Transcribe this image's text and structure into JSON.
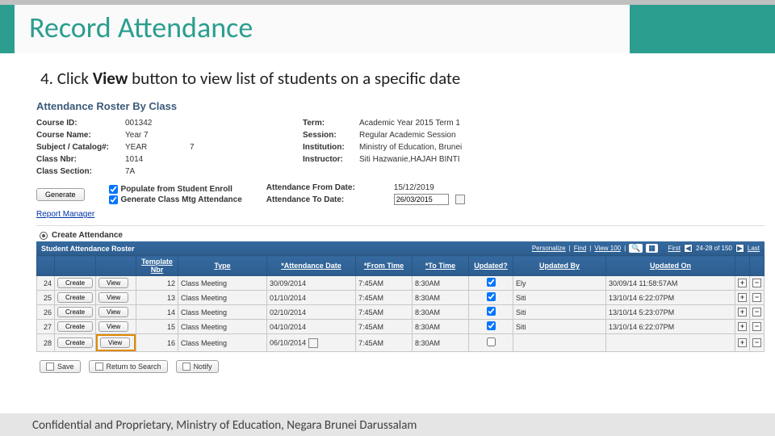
{
  "header": {
    "title": "Record Attendance"
  },
  "instruction": {
    "prefix": "4.  Click ",
    "bold": "View",
    "suffix": " button to view list of students on a specific date"
  },
  "panel": {
    "title": "Attendance Roster By Class",
    "left_fields": [
      {
        "label": "Course ID:",
        "value": "001342"
      },
      {
        "label": "Course Name:",
        "value": "Year 7"
      },
      {
        "label": "Subject / Catalog#:",
        "value": "YEAR",
        "value2": "7"
      },
      {
        "label": "Class Nbr:",
        "value": "1014"
      },
      {
        "label": "Class Section:",
        "value": "7A"
      }
    ],
    "right_fields": [
      {
        "label": "Term:",
        "value": "Academic Year 2015 Term 1"
      },
      {
        "label": "Session:",
        "value": "Regular Academic Session"
      },
      {
        "label": "Institution:",
        "value": "Ministry of Education, Brunei"
      },
      {
        "label": "Instructor:",
        "value": "Siti Hazwanie,HAJAH BINTI"
      }
    ],
    "generate_btn": "Generate",
    "cbx1": "Populate from Student Enroll",
    "cbx2": "Generate Class Mtg Attendance",
    "date_from_label": "Attendance From Date:",
    "date_from_value": "15/12/2019",
    "date_to_label": "Attendance To Date:",
    "date_to_value": "26/03/2015",
    "report_link": "Report Manager",
    "tab_label": "Create Attendance"
  },
  "roster": {
    "bar_title": "Student Attendance Roster",
    "personalize": "Personalize",
    "find": "Find",
    "view100": "View 100",
    "first": "First",
    "range": "24-28 of 150",
    "last": "Last",
    "headers": {
      "template": "Template\nNbr",
      "type": "Type",
      "date": "*Attendance Date",
      "from": "*From Time",
      "to": "*To Time",
      "updated": "Updated?",
      "updated_by": "Updated By",
      "updated_on": "Updated On"
    },
    "rows": [
      {
        "n": "24",
        "tmpl": "12",
        "type": "Class Meeting",
        "date": "30/09/2014",
        "from": "7:45AM",
        "to": "8:30AM",
        "upd": true,
        "by": "Ely",
        "on": "30/09/14 11:58:57AM"
      },
      {
        "n": "25",
        "tmpl": "13",
        "type": "Class Meeting",
        "date": "01/10/2014",
        "from": "7:45AM",
        "to": "8:30AM",
        "upd": true,
        "by": "Siti",
        "on": "13/10/14 6:22:07PM"
      },
      {
        "n": "26",
        "tmpl": "14",
        "type": "Class Meeting",
        "date": "02/10/2014",
        "from": "7:45AM",
        "to": "8:30AM",
        "upd": true,
        "by": "Siti",
        "on": "13/10/14 5:23:07PM"
      },
      {
        "n": "27",
        "tmpl": "15",
        "type": "Class Meeting",
        "date": "04/10/2014",
        "from": "7:45AM",
        "to": "8:30AM",
        "upd": true,
        "by": "Siti",
        "on": "13/10/14 6:22:07PM"
      },
      {
        "n": "28",
        "tmpl": "16",
        "type": "Class Meeting",
        "date": "06/10/2014",
        "from": "7:45AM",
        "to": "8:30AM",
        "upd": false,
        "by": "",
        "on": ""
      }
    ],
    "btn_create": "Create",
    "btn_view": "View"
  },
  "actions": {
    "save": "Save",
    "return": "Return to Search",
    "notify": "Notify"
  },
  "footer": "Confidential and Proprietary, Ministry of Education, Negara Brunei Darussalam"
}
